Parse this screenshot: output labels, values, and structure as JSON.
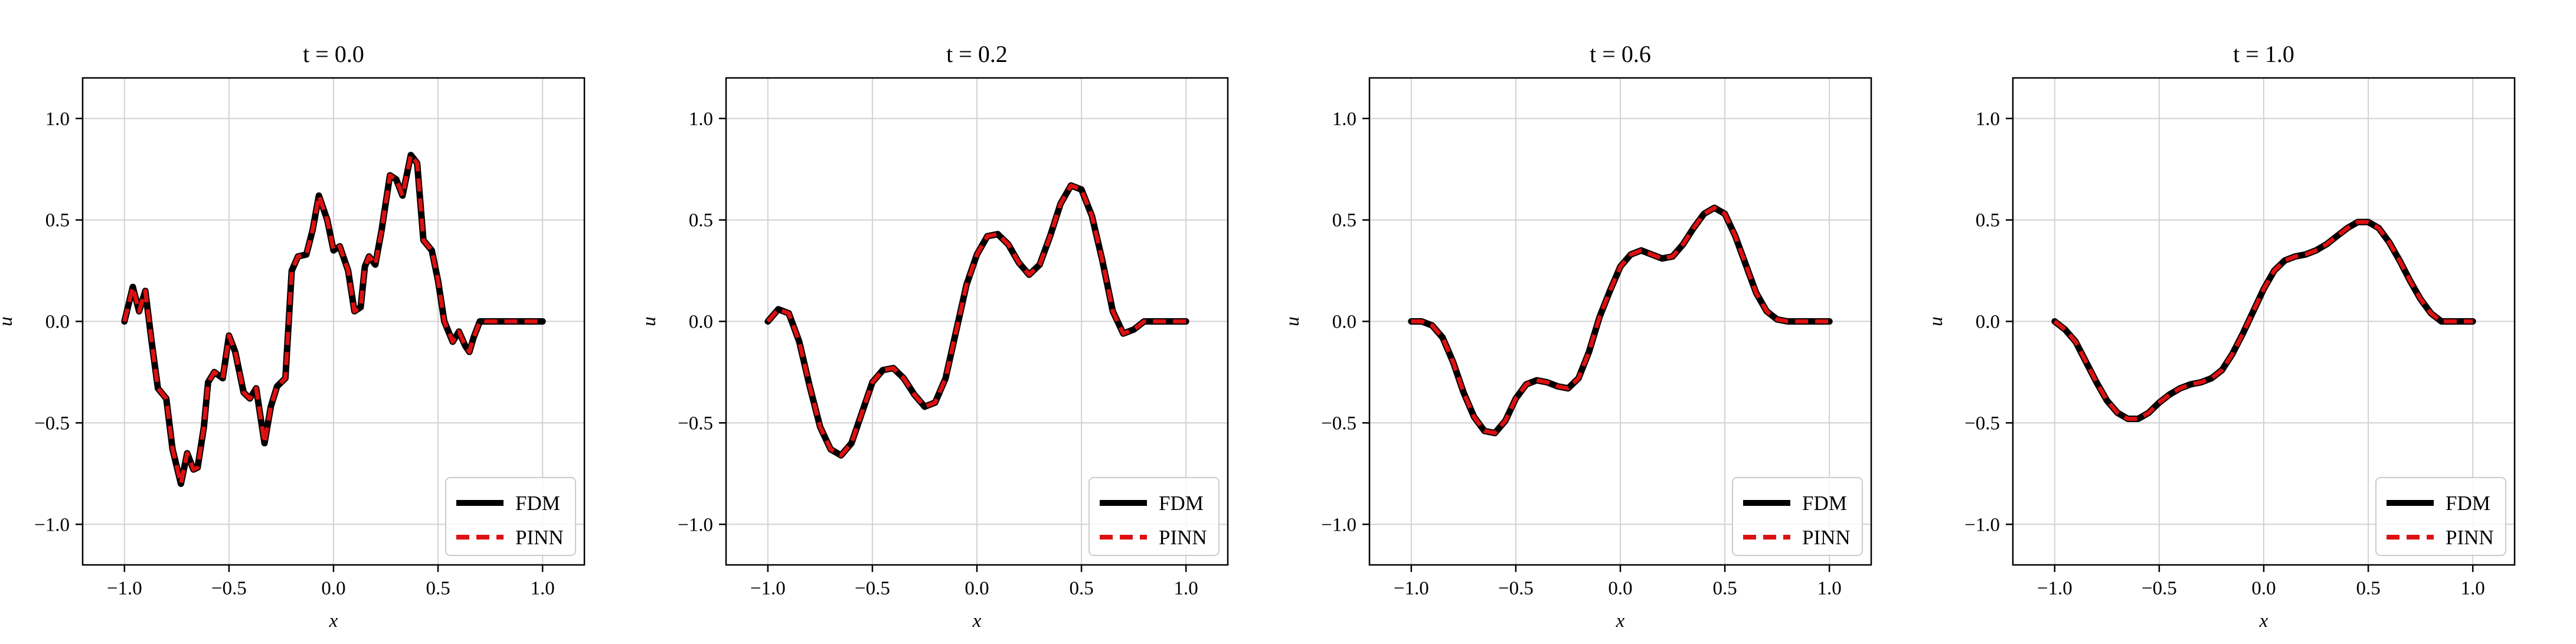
{
  "colors": {
    "fdm": "#000000",
    "pinn": "#dd1111",
    "grid": "#d2d2d2",
    "axis": "#000000"
  },
  "chart_data": [
    {
      "type": "line",
      "title": "t = 0.0",
      "xlabel": "x",
      "ylabel": "u",
      "xlim": [
        -1.2,
        1.2
      ],
      "ylim": [
        -1.2,
        1.2
      ],
      "xticks": [
        -1.0,
        -0.5,
        0.0,
        0.5,
        1.0
      ],
      "yticks": [
        -1.0,
        -0.5,
        0.0,
        0.5,
        1.0
      ],
      "xtick_labels": [
        "−1.0",
        "−0.5",
        "0.0",
        "0.5",
        "1.0"
      ],
      "ytick_labels": [
        "−1.0",
        "−0.5",
        "0.0",
        "0.5",
        "1.0"
      ],
      "grid": true,
      "legend_position": "lower-right",
      "series": [
        {
          "name": "FDM",
          "style": "solid",
          "x": [
            -1.0,
            -0.96,
            -0.93,
            -0.9,
            -0.87,
            -0.84,
            -0.8,
            -0.77,
            -0.73,
            -0.7,
            -0.67,
            -0.65,
            -0.62,
            -0.6,
            -0.57,
            -0.53,
            -0.5,
            -0.47,
            -0.43,
            -0.4,
            -0.37,
            -0.33,
            -0.3,
            -0.27,
            -0.23,
            -0.2,
            -0.17,
            -0.13,
            -0.1,
            -0.07,
            -0.03,
            0.0,
            0.03,
            0.07,
            0.1,
            0.13,
            0.15,
            0.17,
            0.2,
            0.23,
            0.27,
            0.3,
            0.33,
            0.37,
            0.4,
            0.43,
            0.47,
            0.5,
            0.53,
            0.57,
            0.6,
            0.63,
            0.65,
            0.67,
            0.7,
            0.73,
            0.77,
            0.8,
            0.83,
            0.85,
            0.87,
            0.9,
            0.93,
            0.97,
            1.0
          ],
          "y": [
            0.0,
            0.17,
            0.05,
            0.15,
            -0.1,
            -0.33,
            -0.38,
            -0.63,
            -0.8,
            -0.65,
            -0.73,
            -0.72,
            -0.52,
            -0.3,
            -0.25,
            -0.28,
            -0.07,
            -0.15,
            -0.35,
            -0.38,
            -0.33,
            -0.6,
            -0.42,
            -0.32,
            -0.28,
            0.25,
            0.32,
            0.33,
            0.45,
            0.62,
            0.5,
            0.35,
            0.37,
            0.25,
            0.05,
            0.07,
            0.27,
            0.32,
            0.28,
            0.45,
            0.72,
            0.7,
            0.62,
            0.82,
            0.78,
            0.4,
            0.35,
            0.2,
            0.0,
            -0.1,
            -0.05,
            -0.12,
            -0.15,
            -0.08,
            0.0,
            0.0,
            0.0,
            0.0,
            0.0,
            0.0,
            0.0,
            0.0,
            0.0,
            0.0,
            0.0
          ]
        },
        {
          "name": "PINN",
          "style": "dashed",
          "x": [
            -1.0,
            -0.96,
            -0.93,
            -0.9,
            -0.87,
            -0.84,
            -0.8,
            -0.77,
            -0.73,
            -0.7,
            -0.67,
            -0.65,
            -0.62,
            -0.6,
            -0.57,
            -0.53,
            -0.5,
            -0.47,
            -0.43,
            -0.4,
            -0.37,
            -0.33,
            -0.3,
            -0.27,
            -0.23,
            -0.2,
            -0.17,
            -0.13,
            -0.1,
            -0.07,
            -0.03,
            0.0,
            0.03,
            0.07,
            0.1,
            0.13,
            0.15,
            0.17,
            0.2,
            0.23,
            0.27,
            0.3,
            0.33,
            0.37,
            0.4,
            0.43,
            0.47,
            0.5,
            0.53,
            0.57,
            0.6,
            0.63,
            0.65,
            0.67,
            0.7,
            0.73,
            0.77,
            0.8,
            0.83,
            0.85,
            0.87,
            0.9,
            0.93,
            0.97,
            1.0
          ],
          "y": [
            0.0,
            0.17,
            0.05,
            0.15,
            -0.1,
            -0.33,
            -0.38,
            -0.63,
            -0.8,
            -0.65,
            -0.73,
            -0.72,
            -0.52,
            -0.3,
            -0.25,
            -0.28,
            -0.07,
            -0.15,
            -0.35,
            -0.38,
            -0.33,
            -0.6,
            -0.42,
            -0.32,
            -0.28,
            0.25,
            0.32,
            0.33,
            0.45,
            0.62,
            0.5,
            0.35,
            0.37,
            0.25,
            0.05,
            0.07,
            0.27,
            0.32,
            0.28,
            0.45,
            0.72,
            0.7,
            0.62,
            0.82,
            0.78,
            0.4,
            0.35,
            0.2,
            0.0,
            -0.1,
            -0.05,
            -0.12,
            -0.15,
            -0.08,
            0.0,
            0.0,
            0.0,
            0.0,
            0.0,
            0.0,
            0.0,
            0.0,
            0.0,
            0.0,
            0.0
          ]
        }
      ]
    },
    {
      "type": "line",
      "title": "t = 0.2",
      "xlabel": "x",
      "ylabel": "u",
      "xlim": [
        -1.2,
        1.2
      ],
      "ylim": [
        -1.2,
        1.2
      ],
      "xticks": [
        -1.0,
        -0.5,
        0.0,
        0.5,
        1.0
      ],
      "yticks": [
        -1.0,
        -0.5,
        0.0,
        0.5,
        1.0
      ],
      "xtick_labels": [
        "−1.0",
        "−0.5",
        "0.0",
        "0.5",
        "1.0"
      ],
      "ytick_labels": [
        "−1.0",
        "−0.5",
        "0.0",
        "0.5",
        "1.0"
      ],
      "grid": true,
      "legend_position": "lower-right",
      "series": [
        {
          "name": "FDM",
          "style": "solid",
          "x": [
            -1.0,
            -0.95,
            -0.9,
            -0.85,
            -0.8,
            -0.75,
            -0.7,
            -0.65,
            -0.6,
            -0.55,
            -0.5,
            -0.45,
            -0.4,
            -0.35,
            -0.3,
            -0.25,
            -0.2,
            -0.15,
            -0.1,
            -0.05,
            0.0,
            0.05,
            0.1,
            0.15,
            0.2,
            0.25,
            0.3,
            0.35,
            0.4,
            0.45,
            0.5,
            0.55,
            0.6,
            0.65,
            0.7,
            0.75,
            0.8,
            0.85,
            0.9,
            0.95,
            1.0
          ],
          "y": [
            0.0,
            0.06,
            0.04,
            -0.1,
            -0.32,
            -0.52,
            -0.63,
            -0.66,
            -0.6,
            -0.45,
            -0.3,
            -0.24,
            -0.23,
            -0.28,
            -0.36,
            -0.42,
            -0.4,
            -0.28,
            -0.05,
            0.18,
            0.33,
            0.42,
            0.43,
            0.38,
            0.29,
            0.23,
            0.28,
            0.42,
            0.58,
            0.67,
            0.65,
            0.52,
            0.3,
            0.05,
            -0.06,
            -0.04,
            0.0,
            0.0,
            0.0,
            0.0,
            0.0
          ]
        },
        {
          "name": "PINN",
          "style": "dashed",
          "x": [
            -1.0,
            -0.95,
            -0.9,
            -0.85,
            -0.8,
            -0.75,
            -0.7,
            -0.65,
            -0.6,
            -0.55,
            -0.5,
            -0.45,
            -0.4,
            -0.35,
            -0.3,
            -0.25,
            -0.2,
            -0.15,
            -0.1,
            -0.05,
            0.0,
            0.05,
            0.1,
            0.15,
            0.2,
            0.25,
            0.3,
            0.35,
            0.4,
            0.45,
            0.5,
            0.55,
            0.6,
            0.65,
            0.7,
            0.75,
            0.8,
            0.85,
            0.9,
            0.95,
            1.0
          ],
          "y": [
            0.0,
            0.06,
            0.04,
            -0.1,
            -0.32,
            -0.52,
            -0.63,
            -0.66,
            -0.6,
            -0.45,
            -0.3,
            -0.24,
            -0.23,
            -0.28,
            -0.36,
            -0.42,
            -0.4,
            -0.28,
            -0.05,
            0.18,
            0.33,
            0.42,
            0.43,
            0.38,
            0.29,
            0.23,
            0.28,
            0.42,
            0.58,
            0.67,
            0.65,
            0.52,
            0.3,
            0.05,
            -0.06,
            -0.04,
            0.0,
            0.0,
            0.0,
            0.0,
            0.0
          ]
        }
      ]
    },
    {
      "type": "line",
      "title": "t = 0.6",
      "xlabel": "x",
      "ylabel": "u",
      "xlim": [
        -1.2,
        1.2
      ],
      "ylim": [
        -1.2,
        1.2
      ],
      "xticks": [
        -1.0,
        -0.5,
        0.0,
        0.5,
        1.0
      ],
      "yticks": [
        -1.0,
        -0.5,
        0.0,
        0.5,
        1.0
      ],
      "xtick_labels": [
        "−1.0",
        "−0.5",
        "0.0",
        "0.5",
        "1.0"
      ],
      "ytick_labels": [
        "−1.0",
        "−0.5",
        "0.0",
        "0.5",
        "1.0"
      ],
      "grid": true,
      "legend_position": "lower-right",
      "series": [
        {
          "name": "FDM",
          "style": "solid",
          "x": [
            -1.0,
            -0.95,
            -0.9,
            -0.85,
            -0.8,
            -0.75,
            -0.7,
            -0.65,
            -0.6,
            -0.55,
            -0.5,
            -0.45,
            -0.4,
            -0.35,
            -0.3,
            -0.25,
            -0.2,
            -0.15,
            -0.1,
            -0.05,
            0.0,
            0.05,
            0.1,
            0.15,
            0.2,
            0.25,
            0.3,
            0.35,
            0.4,
            0.45,
            0.5,
            0.55,
            0.6,
            0.65,
            0.7,
            0.75,
            0.8,
            0.85,
            0.9,
            0.95,
            1.0
          ],
          "y": [
            0.0,
            0.0,
            -0.02,
            -0.08,
            -0.2,
            -0.35,
            -0.47,
            -0.54,
            -0.55,
            -0.49,
            -0.38,
            -0.31,
            -0.29,
            -0.3,
            -0.32,
            -0.33,
            -0.28,
            -0.15,
            0.02,
            0.15,
            0.27,
            0.33,
            0.35,
            0.33,
            0.31,
            0.32,
            0.38,
            0.46,
            0.53,
            0.56,
            0.53,
            0.42,
            0.28,
            0.14,
            0.05,
            0.01,
            0.0,
            0.0,
            0.0,
            0.0,
            0.0
          ]
        },
        {
          "name": "PINN",
          "style": "dashed",
          "x": [
            -1.0,
            -0.95,
            -0.9,
            -0.85,
            -0.8,
            -0.75,
            -0.7,
            -0.65,
            -0.6,
            -0.55,
            -0.5,
            -0.45,
            -0.4,
            -0.35,
            -0.3,
            -0.25,
            -0.2,
            -0.15,
            -0.1,
            -0.05,
            0.0,
            0.05,
            0.1,
            0.15,
            0.2,
            0.25,
            0.3,
            0.35,
            0.4,
            0.45,
            0.5,
            0.55,
            0.6,
            0.65,
            0.7,
            0.75,
            0.8,
            0.85,
            0.9,
            0.95,
            1.0
          ],
          "y": [
            0.0,
            0.0,
            -0.02,
            -0.08,
            -0.2,
            -0.35,
            -0.47,
            -0.54,
            -0.55,
            -0.49,
            -0.38,
            -0.31,
            -0.29,
            -0.3,
            -0.32,
            -0.33,
            -0.28,
            -0.15,
            0.02,
            0.15,
            0.27,
            0.33,
            0.35,
            0.33,
            0.31,
            0.32,
            0.38,
            0.46,
            0.53,
            0.56,
            0.53,
            0.42,
            0.28,
            0.14,
            0.05,
            0.01,
            0.0,
            0.0,
            0.0,
            0.0,
            0.0
          ]
        }
      ]
    },
    {
      "type": "line",
      "title": "t = 1.0",
      "xlabel": "x",
      "ylabel": "u",
      "xlim": [
        -1.2,
        1.2
      ],
      "ylim": [
        -1.2,
        1.2
      ],
      "xticks": [
        -1.0,
        -0.5,
        0.0,
        0.5,
        1.0
      ],
      "yticks": [
        -1.0,
        -0.5,
        0.0,
        0.5,
        1.0
      ],
      "xtick_labels": [
        "−1.0",
        "−0.5",
        "0.0",
        "0.5",
        "1.0"
      ],
      "ytick_labels": [
        "−1.0",
        "−0.5",
        "0.0",
        "0.5",
        "1.0"
      ],
      "grid": true,
      "legend_position": "lower-right",
      "series": [
        {
          "name": "FDM",
          "style": "solid",
          "x": [
            -1.0,
            -0.95,
            -0.9,
            -0.85,
            -0.8,
            -0.75,
            -0.7,
            -0.65,
            -0.6,
            -0.55,
            -0.5,
            -0.45,
            -0.4,
            -0.35,
            -0.3,
            -0.25,
            -0.2,
            -0.15,
            -0.1,
            -0.05,
            0.0,
            0.05,
            0.1,
            0.15,
            0.2,
            0.25,
            0.3,
            0.35,
            0.4,
            0.45,
            0.5,
            0.55,
            0.6,
            0.65,
            0.7,
            0.75,
            0.8,
            0.85,
            0.9,
            0.95,
            1.0
          ],
          "y": [
            0.0,
            -0.04,
            -0.1,
            -0.2,
            -0.3,
            -0.39,
            -0.45,
            -0.48,
            -0.48,
            -0.45,
            -0.4,
            -0.36,
            -0.33,
            -0.31,
            -0.3,
            -0.28,
            -0.24,
            -0.16,
            -0.06,
            0.05,
            0.16,
            0.25,
            0.3,
            0.32,
            0.33,
            0.35,
            0.38,
            0.42,
            0.46,
            0.49,
            0.49,
            0.46,
            0.39,
            0.3,
            0.2,
            0.11,
            0.04,
            0.0,
            0.0,
            0.0,
            0.0
          ]
        },
        {
          "name": "PINN",
          "style": "dashed",
          "x": [
            -1.0,
            -0.95,
            -0.9,
            -0.85,
            -0.8,
            -0.75,
            -0.7,
            -0.65,
            -0.6,
            -0.55,
            -0.5,
            -0.45,
            -0.4,
            -0.35,
            -0.3,
            -0.25,
            -0.2,
            -0.15,
            -0.1,
            -0.05,
            0.0,
            0.05,
            0.1,
            0.15,
            0.2,
            0.25,
            0.3,
            0.35,
            0.4,
            0.45,
            0.5,
            0.55,
            0.6,
            0.65,
            0.7,
            0.75,
            0.8,
            0.85,
            0.9,
            0.95,
            1.0
          ],
          "y": [
            0.0,
            -0.04,
            -0.1,
            -0.2,
            -0.3,
            -0.39,
            -0.45,
            -0.48,
            -0.48,
            -0.45,
            -0.4,
            -0.36,
            -0.33,
            -0.31,
            -0.3,
            -0.28,
            -0.24,
            -0.16,
            -0.06,
            0.05,
            0.16,
            0.25,
            0.3,
            0.32,
            0.33,
            0.35,
            0.38,
            0.42,
            0.46,
            0.49,
            0.49,
            0.46,
            0.39,
            0.3,
            0.2,
            0.11,
            0.04,
            0.0,
            0.0,
            0.0,
            0.0
          ]
        }
      ]
    }
  ]
}
